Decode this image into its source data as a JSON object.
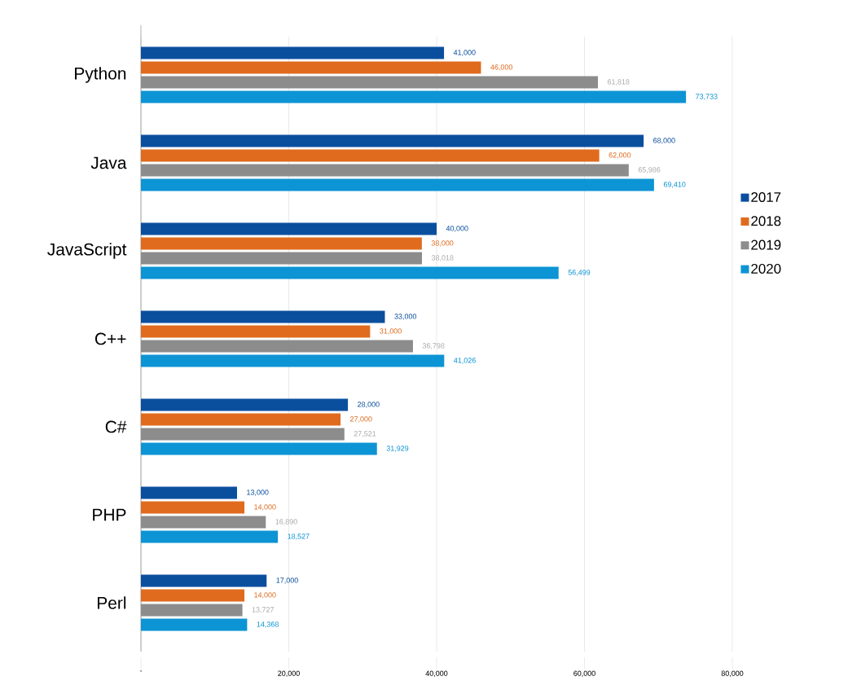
{
  "chart_data": {
    "type": "bar",
    "orientation": "horizontal",
    "categories": [
      "Python",
      "Java",
      "JavaScript",
      "C++",
      "C#",
      "PHP",
      "Perl"
    ],
    "series": [
      {
        "name": "2017",
        "color": "#0a4f9e",
        "values": [
          41000,
          68000,
          40000,
          33000,
          28000,
          13000,
          17000
        ],
        "value_labels": [
          "41,000",
          "68,000",
          "40,000",
          "33,000",
          "28,000",
          "13,000",
          "17,000"
        ]
      },
      {
        "name": "2018",
        "color": "#e06b1e",
        "values": [
          46000,
          62000,
          38000,
          31000,
          27000,
          14000,
          14000
        ],
        "value_labels": [
          "46,000",
          "62,000",
          "38,000",
          "31,000",
          "27,000",
          "14,000",
          "14,000"
        ]
      },
      {
        "name": "2019",
        "color": "#8c8c8c",
        "values": [
          61818,
          65986,
          38018,
          36798,
          27521,
          16890,
          13727
        ],
        "value_labels": [
          "61,818",
          "65,986",
          "38,018",
          "36,798",
          "27,521",
          "16,890",
          "13,727"
        ]
      },
      {
        "name": "2020",
        "color": "#0d94d4",
        "values": [
          73733,
          69410,
          56499,
          41026,
          31929,
          18527,
          14368
        ],
        "value_labels": [
          "73,733",
          "69,410",
          "56,499",
          "41,026",
          "31,929",
          "18,527",
          "14,368"
        ]
      }
    ],
    "xlim": [
      0,
      80000
    ],
    "xticks": [
      {
        "value": 0,
        "label": "-"
      },
      {
        "value": 20000,
        "label": "20,000"
      },
      {
        "value": 40000,
        "label": "40,000"
      },
      {
        "value": 60000,
        "label": "60,000"
      },
      {
        "value": 80000,
        "label": "80,000"
      }
    ],
    "grid": "x",
    "legend": "right"
  }
}
